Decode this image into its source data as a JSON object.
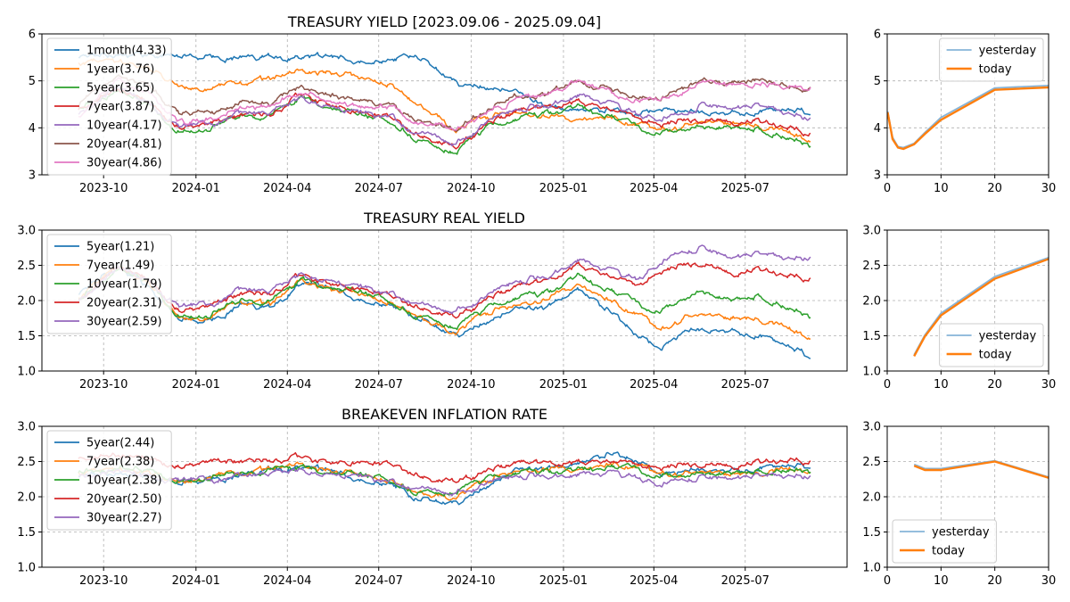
{
  "chart_data": [
    {
      "id": "ty",
      "type": "line",
      "title": "TREASURY YIELD [2023.09.06 - 2025.09.04]",
      "ylim": [
        3,
        6
      ],
      "yticks": [
        "3",
        "4",
        "5",
        "6"
      ],
      "xlim": [
        "2023-09-06",
        "2025-09-04"
      ],
      "xticks": [
        "2023-10",
        "2024-01",
        "2024-04",
        "2024-07",
        "2024-10",
        "2025-01",
        "2025-04",
        "2025-07"
      ],
      "grid": true,
      "legend": "upper left",
      "dates": [
        "2023-09-06",
        "2023-10-15",
        "2023-11-15",
        "2023-12-15",
        "2024-01-15",
        "2024-02-15",
        "2024-03-15",
        "2024-04-15",
        "2024-05-15",
        "2024-06-15",
        "2024-07-15",
        "2024-08-05",
        "2024-08-25",
        "2024-09-16",
        "2024-10-15",
        "2024-11-15",
        "2024-12-15",
        "2025-01-15",
        "2025-02-15",
        "2025-03-15",
        "2025-04-08",
        "2025-05-01",
        "2025-05-20",
        "2025-06-15",
        "2025-07-15",
        "2025-08-15",
        "2025-09-04"
      ],
      "series": [
        {
          "name": "1month(4.33)",
          "color": "#1f77b4",
          "values": [
            5.52,
            5.58,
            5.56,
            5.55,
            5.5,
            5.5,
            5.52,
            5.5,
            5.49,
            5.48,
            5.48,
            5.52,
            5.3,
            4.95,
            4.88,
            4.72,
            4.45,
            4.35,
            4.36,
            4.34,
            4.38,
            4.33,
            4.35,
            4.28,
            4.34,
            4.4,
            4.33
          ]
        },
        {
          "name": "1year(3.76)",
          "color": "#ff7f0e",
          "values": [
            5.4,
            5.45,
            5.27,
            4.95,
            4.82,
            4.95,
            5.05,
            5.2,
            5.2,
            5.05,
            4.95,
            4.5,
            4.35,
            3.95,
            4.2,
            4.35,
            4.22,
            4.2,
            4.22,
            4.05,
            3.92,
            4.02,
            4.12,
            4.1,
            4.06,
            3.9,
            3.76
          ]
        },
        {
          "name": "5year(3.65)",
          "color": "#2ca02c",
          "values": [
            4.4,
            4.8,
            4.45,
            3.95,
            4.0,
            4.25,
            4.25,
            4.65,
            4.45,
            4.25,
            4.15,
            3.8,
            3.65,
            3.45,
            3.95,
            4.2,
            4.3,
            4.45,
            4.25,
            4.0,
            3.9,
            4.0,
            4.05,
            4.0,
            3.95,
            3.8,
            3.65
          ]
        },
        {
          "name": "7year(3.87)",
          "color": "#d62728",
          "values": [
            4.4,
            4.85,
            4.55,
            4.0,
            4.05,
            4.28,
            4.28,
            4.7,
            4.5,
            4.3,
            4.2,
            3.85,
            3.75,
            3.55,
            4.05,
            4.35,
            4.4,
            4.55,
            4.4,
            4.2,
            4.05,
            4.15,
            4.2,
            4.15,
            4.15,
            4.0,
            3.87
          ]
        },
        {
          "name": "10year(4.17)",
          "color": "#9467bd",
          "values": [
            4.3,
            4.85,
            4.55,
            4.0,
            4.1,
            4.3,
            4.3,
            4.65,
            4.45,
            4.3,
            4.25,
            3.85,
            3.85,
            3.65,
            4.1,
            4.4,
            4.45,
            4.7,
            4.55,
            4.3,
            4.2,
            4.3,
            4.5,
            4.4,
            4.45,
            4.3,
            4.17
          ]
        },
        {
          "name": "20year(4.81)",
          "color": "#8c564b",
          "values": [
            4.5,
            5.1,
            4.85,
            4.3,
            4.3,
            4.55,
            4.55,
            4.9,
            4.72,
            4.55,
            4.5,
            4.15,
            4.15,
            3.95,
            4.4,
            4.7,
            4.75,
            5.0,
            4.85,
            4.65,
            4.62,
            4.8,
            5.0,
            4.95,
            5.0,
            4.9,
            4.81
          ]
        },
        {
          "name": "30year(4.86)",
          "color": "#e377c2",
          "values": [
            4.25,
            5.0,
            4.75,
            4.1,
            4.2,
            4.45,
            4.45,
            4.8,
            4.6,
            4.45,
            4.45,
            4.1,
            4.1,
            3.92,
            4.35,
            4.6,
            4.7,
            4.95,
            4.8,
            4.6,
            4.6,
            4.75,
            5.0,
            4.9,
            4.95,
            4.9,
            4.86
          ]
        }
      ]
    },
    {
      "id": "ty_curve",
      "type": "line",
      "xlim": [
        0,
        30
      ],
      "ylim": [
        3,
        6
      ],
      "xticks": [
        "0",
        "10",
        "20",
        "30"
      ],
      "yticks": [
        "3",
        "4",
        "5",
        "6"
      ],
      "grid": true,
      "legend": "upper right",
      "x": [
        0.083,
        1,
        2,
        3,
        5,
        7,
        10,
        20,
        30
      ],
      "series": [
        {
          "name": "yesterday",
          "color": "#86b4d8",
          "values": [
            4.35,
            3.8,
            3.6,
            3.58,
            3.67,
            3.9,
            4.22,
            4.85,
            4.9
          ]
        },
        {
          "name": "today",
          "color": "#ff7f0e",
          "values": [
            4.33,
            3.76,
            3.58,
            3.55,
            3.65,
            3.87,
            4.17,
            4.81,
            4.86
          ]
        }
      ]
    },
    {
      "id": "ry",
      "type": "line",
      "title": "TREASURY REAL YIELD",
      "ylim": [
        1.0,
        3.0
      ],
      "yticks": [
        "1.0",
        "1.5",
        "2.0",
        "2.5",
        "3.0"
      ],
      "xlim": [
        "2023-09-06",
        "2025-09-04"
      ],
      "xticks": [
        "2023-10",
        "2024-01",
        "2024-04",
        "2024-07",
        "2024-10",
        "2025-01",
        "2025-04",
        "2025-07"
      ],
      "grid": true,
      "legend": "upper left",
      "dates": [
        "2023-09-06",
        "2023-10-15",
        "2023-11-15",
        "2023-12-15",
        "2024-01-15",
        "2024-02-15",
        "2024-03-15",
        "2024-04-15",
        "2024-05-15",
        "2024-06-15",
        "2024-07-15",
        "2024-08-05",
        "2024-08-25",
        "2024-09-16",
        "2024-10-15",
        "2024-11-15",
        "2024-12-15",
        "2025-01-15",
        "2025-02-15",
        "2025-03-15",
        "2025-04-08",
        "2025-05-01",
        "2025-05-20",
        "2025-06-15",
        "2025-07-15",
        "2025-08-15",
        "2025-09-04"
      ],
      "series": [
        {
          "name": "5year(1.21)",
          "color": "#1f77b4",
          "values": [
            2.1,
            2.5,
            2.2,
            1.75,
            1.7,
            1.95,
            1.9,
            2.25,
            2.15,
            2.05,
            1.95,
            1.75,
            1.65,
            1.5,
            1.7,
            1.85,
            1.9,
            2.15,
            1.85,
            1.55,
            1.3,
            1.55,
            1.6,
            1.55,
            1.5,
            1.35,
            1.21
          ]
        },
        {
          "name": "7year(1.49)",
          "color": "#ff7f0e",
          "values": [
            2.05,
            2.5,
            2.25,
            1.8,
            1.75,
            1.98,
            1.95,
            2.28,
            2.18,
            2.08,
            1.98,
            1.78,
            1.7,
            1.55,
            1.8,
            1.95,
            2.0,
            2.25,
            2.0,
            1.8,
            1.55,
            1.75,
            1.8,
            1.75,
            1.75,
            1.6,
            1.49
          ]
        },
        {
          "name": "10year(1.79)",
          "color": "#2ca02c",
          "values": [
            2.0,
            2.45,
            2.25,
            1.8,
            1.8,
            2.0,
            1.98,
            2.3,
            2.2,
            2.1,
            2.0,
            1.8,
            1.75,
            1.6,
            1.85,
            2.05,
            2.1,
            2.35,
            2.15,
            1.95,
            1.85,
            2.05,
            2.15,
            2.0,
            2.05,
            1.9,
            1.79
          ]
        },
        {
          "name": "20year(2.31)",
          "color": "#d62728",
          "values": [
            2.0,
            2.5,
            2.3,
            1.85,
            1.9,
            2.1,
            2.1,
            2.35,
            2.25,
            2.15,
            2.05,
            1.9,
            1.85,
            1.75,
            2.0,
            2.2,
            2.25,
            2.5,
            2.35,
            2.2,
            2.4,
            2.5,
            2.55,
            2.4,
            2.45,
            2.35,
            2.31
          ]
        },
        {
          "name": "30year(2.59)",
          "color": "#9467bd",
          "values": [
            2.0,
            2.45,
            2.3,
            1.9,
            1.95,
            2.15,
            2.12,
            2.38,
            2.28,
            2.18,
            2.1,
            1.95,
            1.9,
            1.85,
            2.05,
            2.28,
            2.32,
            2.58,
            2.45,
            2.3,
            2.55,
            2.7,
            2.75,
            2.6,
            2.65,
            2.6,
            2.59
          ]
        }
      ]
    },
    {
      "id": "ry_curve",
      "type": "line",
      "xlim": [
        0,
        30
      ],
      "ylim": [
        1.0,
        3.0
      ],
      "xticks": [
        "0",
        "10",
        "20",
        "30"
      ],
      "yticks": [
        "1.0",
        "1.5",
        "2.0",
        "2.5",
        "3.0"
      ],
      "grid": true,
      "legend": "lower right",
      "x": [
        5,
        7,
        10,
        20,
        30
      ],
      "series": [
        {
          "name": "yesterday",
          "color": "#86b4d8",
          "values": [
            1.23,
            1.51,
            1.82,
            2.34,
            2.61
          ]
        },
        {
          "name": "today",
          "color": "#ff7f0e",
          "values": [
            1.21,
            1.49,
            1.79,
            2.31,
            2.59
          ]
        }
      ]
    },
    {
      "id": "be",
      "type": "line",
      "title": "BREAKEVEN INFLATION RATE",
      "ylim": [
        1.0,
        3.0
      ],
      "yticks": [
        "1.0",
        "1.5",
        "2.0",
        "2.5",
        "3.0"
      ],
      "xlim": [
        "2023-09-06",
        "2025-09-04"
      ],
      "xticks": [
        "2023-10",
        "2024-01",
        "2024-04",
        "2024-07",
        "2024-10",
        "2025-01",
        "2025-04",
        "2025-07"
      ],
      "grid": true,
      "legend": "upper left",
      "dates": [
        "2023-09-06",
        "2023-10-15",
        "2023-11-15",
        "2023-12-15",
        "2024-01-15",
        "2024-02-15",
        "2024-03-15",
        "2024-04-15",
        "2024-05-15",
        "2024-06-15",
        "2024-07-15",
        "2024-08-05",
        "2024-08-25",
        "2024-09-16",
        "2024-10-15",
        "2024-11-15",
        "2024-12-15",
        "2025-01-15",
        "2025-02-15",
        "2025-03-15",
        "2025-04-08",
        "2025-05-01",
        "2025-05-20",
        "2025-06-15",
        "2025-07-15",
        "2025-08-15",
        "2025-09-04"
      ],
      "series": [
        {
          "name": "5year(2.44)",
          "color": "#1f77b4",
          "values": [
            2.3,
            2.35,
            2.3,
            2.2,
            2.25,
            2.3,
            2.4,
            2.42,
            2.35,
            2.28,
            2.2,
            1.95,
            1.95,
            1.9,
            2.15,
            2.35,
            2.4,
            2.45,
            2.6,
            2.55,
            2.3,
            2.35,
            2.4,
            2.35,
            2.4,
            2.45,
            2.44
          ]
        },
        {
          "name": "7year(2.38)",
          "color": "#ff7f0e",
          "values": [
            2.35,
            2.4,
            2.35,
            2.25,
            2.28,
            2.32,
            2.4,
            2.45,
            2.38,
            2.3,
            2.25,
            2.05,
            2.05,
            2.0,
            2.2,
            2.38,
            2.38,
            2.4,
            2.45,
            2.42,
            2.3,
            2.32,
            2.35,
            2.32,
            2.35,
            2.4,
            2.38
          ]
        },
        {
          "name": "10year(2.38)",
          "color": "#2ca02c",
          "values": [
            2.35,
            2.4,
            2.35,
            2.25,
            2.28,
            2.32,
            2.38,
            2.42,
            2.36,
            2.3,
            2.25,
            2.08,
            2.08,
            2.05,
            2.22,
            2.35,
            2.35,
            2.38,
            2.42,
            2.38,
            2.3,
            2.32,
            2.35,
            2.33,
            2.35,
            2.4,
            2.38
          ]
        },
        {
          "name": "20year(2.50)",
          "color": "#d62728",
          "values": [
            2.55,
            2.6,
            2.55,
            2.42,
            2.48,
            2.5,
            2.52,
            2.55,
            2.5,
            2.48,
            2.45,
            2.3,
            2.25,
            2.2,
            2.35,
            2.48,
            2.45,
            2.48,
            2.5,
            2.45,
            2.4,
            2.45,
            2.48,
            2.45,
            2.5,
            2.52,
            2.5
          ]
        },
        {
          "name": "30year(2.27)",
          "color": "#9467bd",
          "values": [
            2.3,
            2.35,
            2.32,
            2.22,
            2.25,
            2.28,
            2.32,
            2.38,
            2.32,
            2.28,
            2.22,
            2.1,
            2.1,
            2.05,
            2.18,
            2.3,
            2.28,
            2.32,
            2.35,
            2.28,
            2.18,
            2.25,
            2.28,
            2.25,
            2.28,
            2.3,
            2.27
          ]
        }
      ]
    },
    {
      "id": "be_curve",
      "type": "line",
      "xlim": [
        0,
        30
      ],
      "ylim": [
        1.0,
        3.0
      ],
      "xticks": [
        "0",
        "10",
        "20",
        "30"
      ],
      "yticks": [
        "1.0",
        "1.5",
        "2.0",
        "2.5",
        "3.0"
      ],
      "grid": true,
      "legend": "lower left",
      "x": [
        5,
        7,
        10,
        20,
        30
      ],
      "series": [
        {
          "name": "yesterday",
          "color": "#86b4d8",
          "values": [
            2.46,
            2.4,
            2.4,
            2.51,
            2.28
          ]
        },
        {
          "name": "today",
          "color": "#ff7f0e",
          "values": [
            2.44,
            2.38,
            2.38,
            2.5,
            2.27
          ]
        }
      ]
    }
  ]
}
